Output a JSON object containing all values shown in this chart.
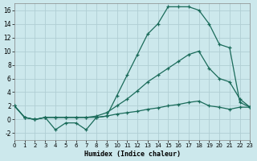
{
  "xlabel": "Humidex (Indice chaleur)",
  "bg_color": "#cce8ec",
  "grid_color": "#b8d8dc",
  "line_color": "#1a6b5a",
  "xlim": [
    0,
    23
  ],
  "ylim": [
    -3,
    17
  ],
  "xticks": [
    0,
    1,
    2,
    3,
    4,
    5,
    6,
    7,
    8,
    9,
    10,
    11,
    12,
    13,
    14,
    15,
    16,
    17,
    18,
    19,
    20,
    21,
    22,
    23
  ],
  "yticks": [
    -2,
    0,
    2,
    4,
    6,
    8,
    10,
    12,
    14,
    16
  ],
  "series1_x": [
    0,
    1,
    2,
    3,
    4,
    5,
    6,
    7,
    8,
    9,
    10,
    11,
    12,
    13,
    14,
    15,
    16,
    17,
    18,
    19,
    20,
    21,
    22,
    23
  ],
  "series1_y": [
    2.0,
    0.3,
    0.0,
    0.3,
    -1.5,
    -0.5,
    -0.5,
    -1.5,
    0.3,
    0.5,
    3.5,
    6.5,
    9.5,
    12.5,
    14.0,
    16.5,
    16.5,
    16.5,
    16.0,
    14.0,
    11.0,
    10.5,
    2.5,
    1.8
  ],
  "series2_x": [
    0,
    1,
    2,
    3,
    4,
    5,
    6,
    7,
    8,
    9,
    10,
    11,
    12,
    13,
    14,
    15,
    16,
    17,
    18,
    19,
    20,
    21,
    22,
    23
  ],
  "series2_y": [
    2.0,
    0.3,
    0.0,
    0.3,
    0.3,
    0.3,
    0.3,
    0.3,
    0.5,
    1.0,
    2.0,
    3.0,
    4.2,
    5.5,
    6.5,
    7.5,
    8.5,
    9.5,
    10.0,
    7.5,
    6.0,
    5.5,
    3.0,
    1.8
  ],
  "series3_x": [
    0,
    1,
    2,
    3,
    4,
    5,
    6,
    7,
    8,
    9,
    10,
    11,
    12,
    13,
    14,
    15,
    16,
    17,
    18,
    19,
    20,
    21,
    22,
    23
  ],
  "series3_y": [
    2.0,
    0.3,
    0.0,
    0.3,
    0.3,
    0.3,
    0.3,
    0.3,
    0.3,
    0.5,
    0.8,
    1.0,
    1.2,
    1.5,
    1.7,
    2.0,
    2.2,
    2.5,
    2.7,
    2.0,
    1.8,
    1.5,
    1.8,
    1.8
  ]
}
